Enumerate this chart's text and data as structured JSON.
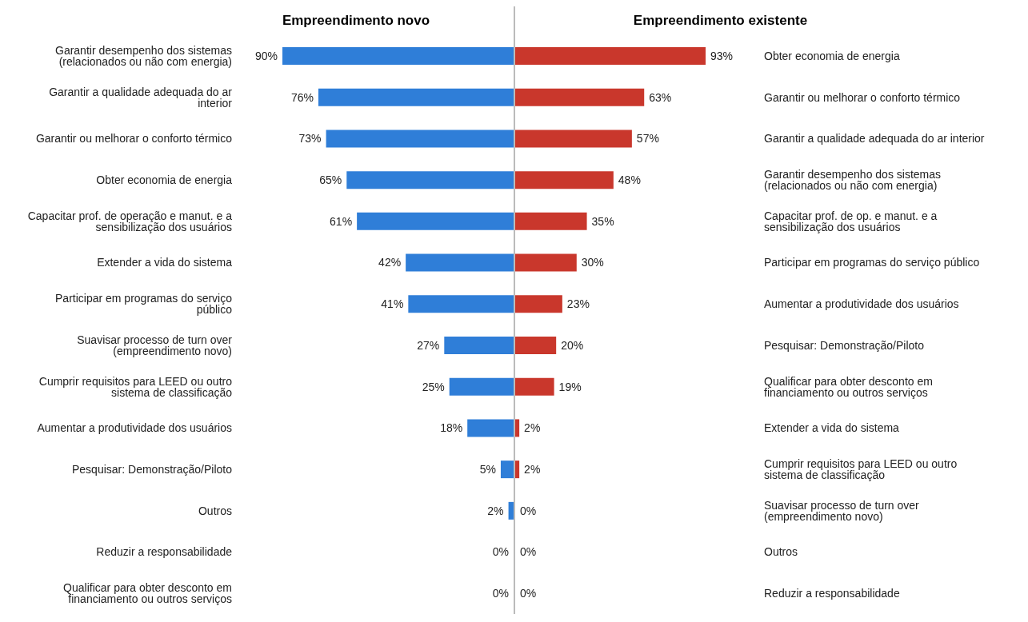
{
  "chart_data": [
    {
      "type": "bar",
      "orientation": "horizontal",
      "title": "Empreendimento novo",
      "categories": [
        "Garantir desempenho dos sistemas (relacionados ou não com energia)",
        "Garantir a qualidade adequada do ar interior",
        "Garantir ou melhorar o conforto térmico",
        "Obter economia de energia",
        "Capacitar prof. de operação e manut. e a sensibilização dos usuários",
        "Extender a vida do sistema",
        "Participar em programas do serviço público",
        "Suavisar processo de turn over (empreendimento novo)",
        "Cumprir requisitos para LEED ou outro sistema de classificação",
        "Aumentar a produtividade dos usuários",
        "Pesquisar: Demonstração/Piloto",
        "Outros",
        "Reduzir a responsabilidade",
        "Qualificar para obter desconto em financiamento ou outros serviços"
      ],
      "values": [
        90,
        76,
        73,
        65,
        61,
        42,
        41,
        27,
        25,
        18,
        5,
        2,
        0,
        0
      ],
      "value_labels": [
        "90%",
        "76%",
        "73%",
        "65%",
        "61%",
        "42%",
        "41%",
        "27%",
        "25%",
        "18%",
        "5%",
        "2%",
        "0%",
        "0%"
      ],
      "color": "#2f7ed8"
    },
    {
      "type": "bar",
      "orientation": "horizontal",
      "title": "Empreendimento existente",
      "categories": [
        "Obter economia de energia",
        "Garantir ou melhorar o conforto térmico",
        "Garantir a qualidade adequada do ar interior",
        "Garantir desempenho dos sistemas (relacionados ou não com energia)",
        "Capacitar prof. de op. e manut. e a sensibilização dos usuários",
        "Participar em programas do serviço público",
        "Aumentar a produtividade dos usuários",
        "Pesquisar: Demonstração/Piloto",
        "Qualificar para obter desconto em financiamento ou outros serviços",
        "Extender a vida do sistema",
        "Cumprir requisitos para LEED ou outro sistema de classificação",
        "Suavisar processo de turn over (empreendimento novo)",
        "Outros",
        "Reduzir a responsabilidade"
      ],
      "values": [
        93,
        63,
        57,
        48,
        35,
        30,
        23,
        20,
        19,
        2,
        2,
        0,
        0,
        0
      ],
      "value_labels": [
        "93%",
        "63%",
        "57%",
        "48%",
        "35%",
        "30%",
        "23%",
        "20%",
        "19%",
        "2%",
        "2%",
        "0%",
        "0%",
        "0%"
      ],
      "color": "#c9372c"
    }
  ]
}
